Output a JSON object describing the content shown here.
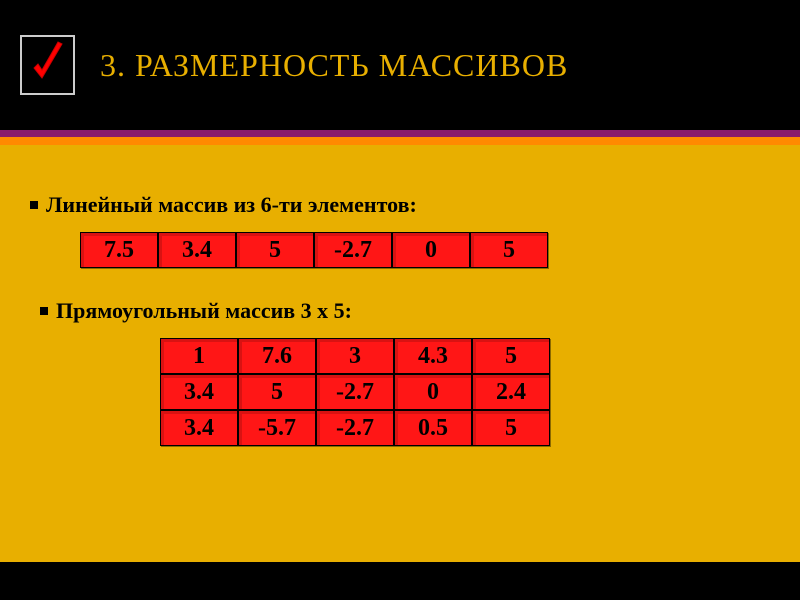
{
  "title": "3. РАЗМЕРНОСТЬ МАССИВОВ",
  "stripes": [
    "#8a1a6b",
    "#ff8a00",
    "#e8af00"
  ],
  "section1": {
    "heading": "Линейный массив из 6-ти элементов:",
    "cells": [
      "7.5",
      "3.4",
      "5",
      "-2.7",
      "0",
      "5"
    ]
  },
  "section2": {
    "heading": "Прямоугольный массив 3 х 5:",
    "rows": [
      [
        "1",
        "7.6",
        "3",
        "4.3",
        "5"
      ],
      [
        "3.4",
        "5",
        "-2.7",
        "0",
        "2.4"
      ],
      [
        "3.4",
        "-5.7",
        "-2.7",
        "0.5",
        "5"
      ]
    ]
  },
  "colors": {
    "cell_bg": "#ff1616",
    "content_bg": "#e8af00",
    "title_color": "#e8af00",
    "check_color": "#ff0000"
  }
}
